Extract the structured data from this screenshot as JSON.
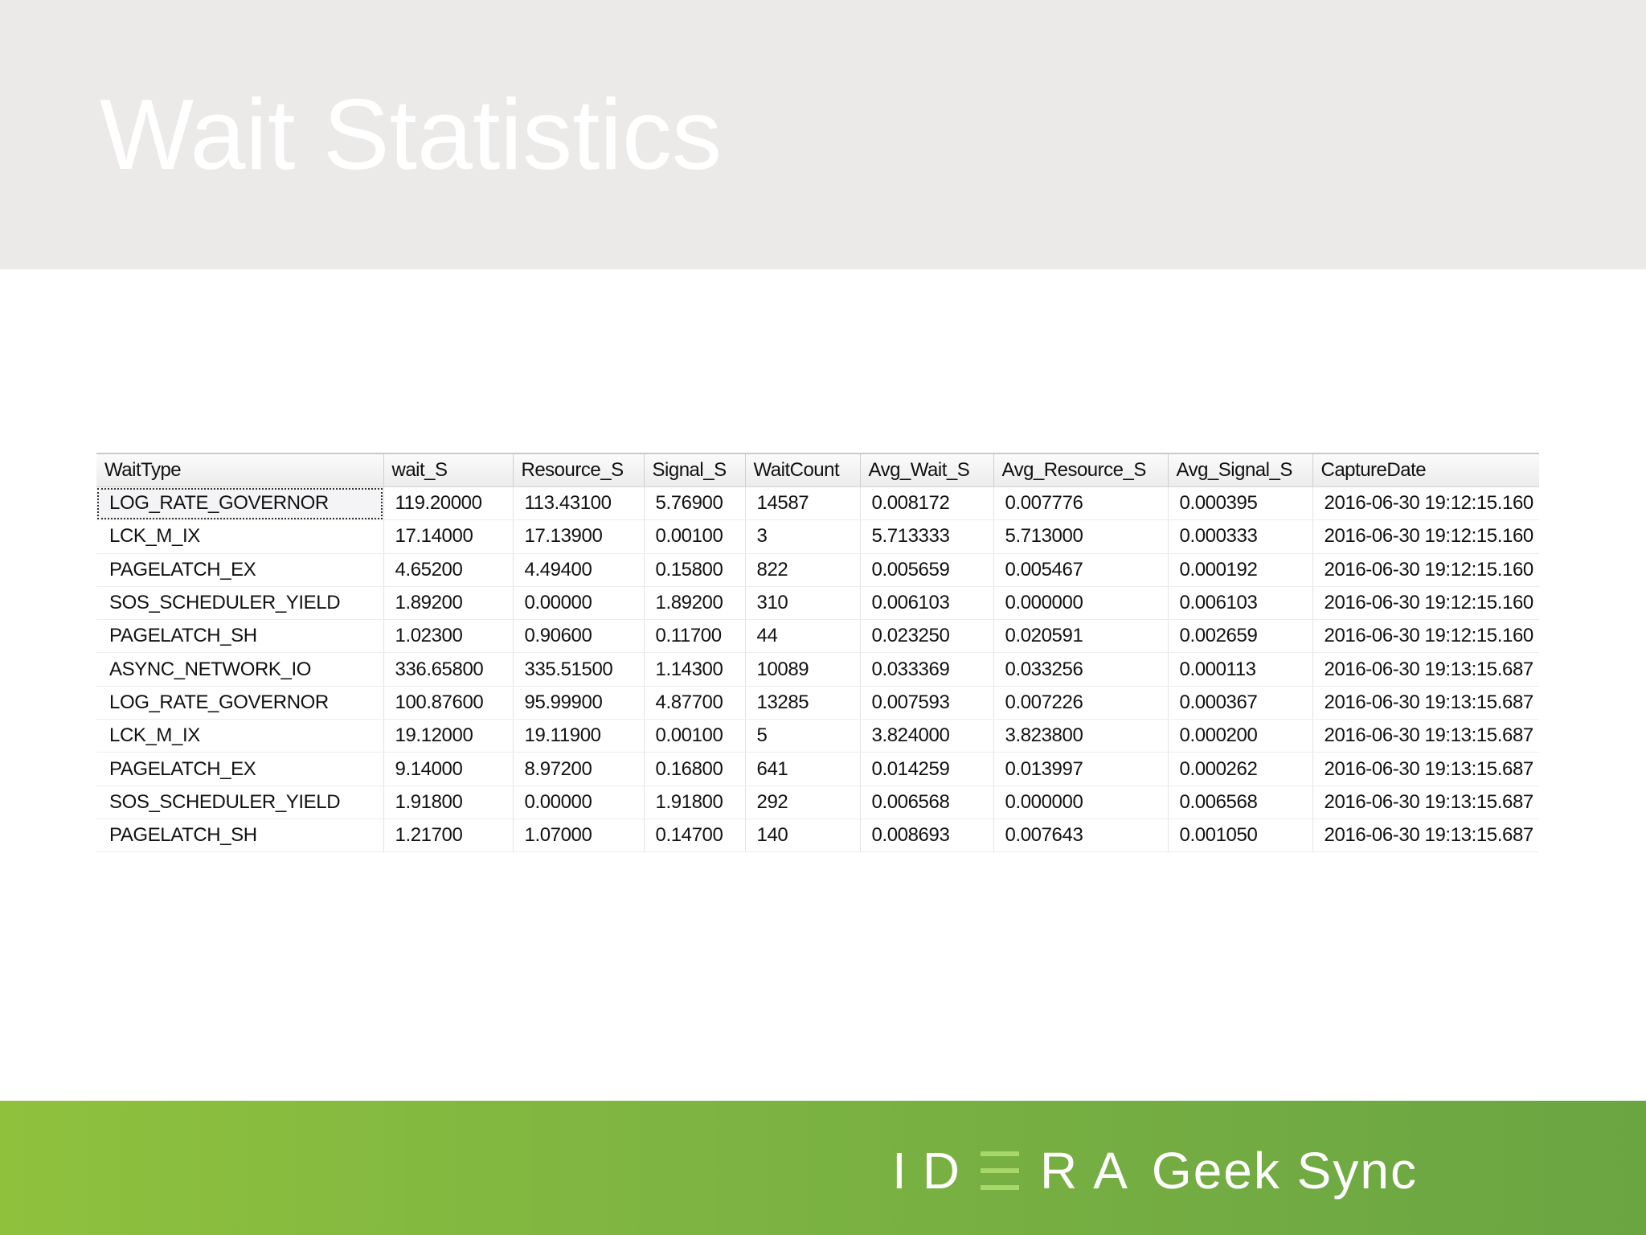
{
  "slide": {
    "title": "Wait Statistics"
  },
  "results": {
    "columns": [
      "WaitType",
      "wait_S",
      "Resource_S",
      "Signal_S",
      "WaitCount",
      "Avg_Wait_S",
      "Avg_Resource_S",
      "Avg_Signal_S",
      "CaptureDate"
    ],
    "selected_row": 0,
    "rows": [
      [
        "LOG_RATE_GOVERNOR",
        "119.20000",
        "113.43100",
        "5.76900",
        "14587",
        "0.008172",
        "0.007776",
        "0.000395",
        "2016-06-30 19:12:15.160"
      ],
      [
        "LCK_M_IX",
        "17.14000",
        "17.13900",
        "0.00100",
        "3",
        "5.713333",
        "5.713000",
        "0.000333",
        "2016-06-30 19:12:15.160"
      ],
      [
        "PAGELATCH_EX",
        "4.65200",
        "4.49400",
        "0.15800",
        "822",
        "0.005659",
        "0.005467",
        "0.000192",
        "2016-06-30 19:12:15.160"
      ],
      [
        "SOS_SCHEDULER_YIELD",
        "1.89200",
        "0.00000",
        "1.89200",
        "310",
        "0.006103",
        "0.000000",
        "0.006103",
        "2016-06-30 19:12:15.160"
      ],
      [
        "PAGELATCH_SH",
        "1.02300",
        "0.90600",
        "0.11700",
        "44",
        "0.023250",
        "0.020591",
        "0.002659",
        "2016-06-30 19:12:15.160"
      ],
      [
        "ASYNC_NETWORK_IO",
        "336.65800",
        "335.51500",
        "1.14300",
        "10089",
        "0.033369",
        "0.033256",
        "0.000113",
        "2016-06-30 19:13:15.687"
      ],
      [
        "LOG_RATE_GOVERNOR",
        "100.87600",
        "95.99900",
        "4.87700",
        "13285",
        "0.007593",
        "0.007226",
        "0.000367",
        "2016-06-30 19:13:15.687"
      ],
      [
        "LCK_M_IX",
        "19.12000",
        "19.11900",
        "0.00100",
        "5",
        "3.824000",
        "3.823800",
        "0.000200",
        "2016-06-30 19:13:15.687"
      ],
      [
        "PAGELATCH_EX",
        "9.14000",
        "8.97200",
        "0.16800",
        "641",
        "0.014259",
        "0.013997",
        "0.000262",
        "2016-06-30 19:13:15.687"
      ],
      [
        "SOS_SCHEDULER_YIELD",
        "1.91800",
        "0.00000",
        "1.91800",
        "292",
        "0.006568",
        "0.000000",
        "0.006568",
        "2016-06-30 19:13:15.687"
      ],
      [
        "PAGELATCH_SH",
        "1.21700",
        "1.07000",
        "0.14700",
        "140",
        "0.008693",
        "0.007643",
        "0.001050",
        "2016-06-30 19:13:15.687"
      ]
    ]
  },
  "footer": {
    "logo_prefix": "ID",
    "logo_suffix": "RA",
    "logo_product": "Geek Sync",
    "logo_name": "IDERA Geek Sync",
    "brand_color": "#7cb342",
    "logo_accent_color": "#a8d86a"
  }
}
